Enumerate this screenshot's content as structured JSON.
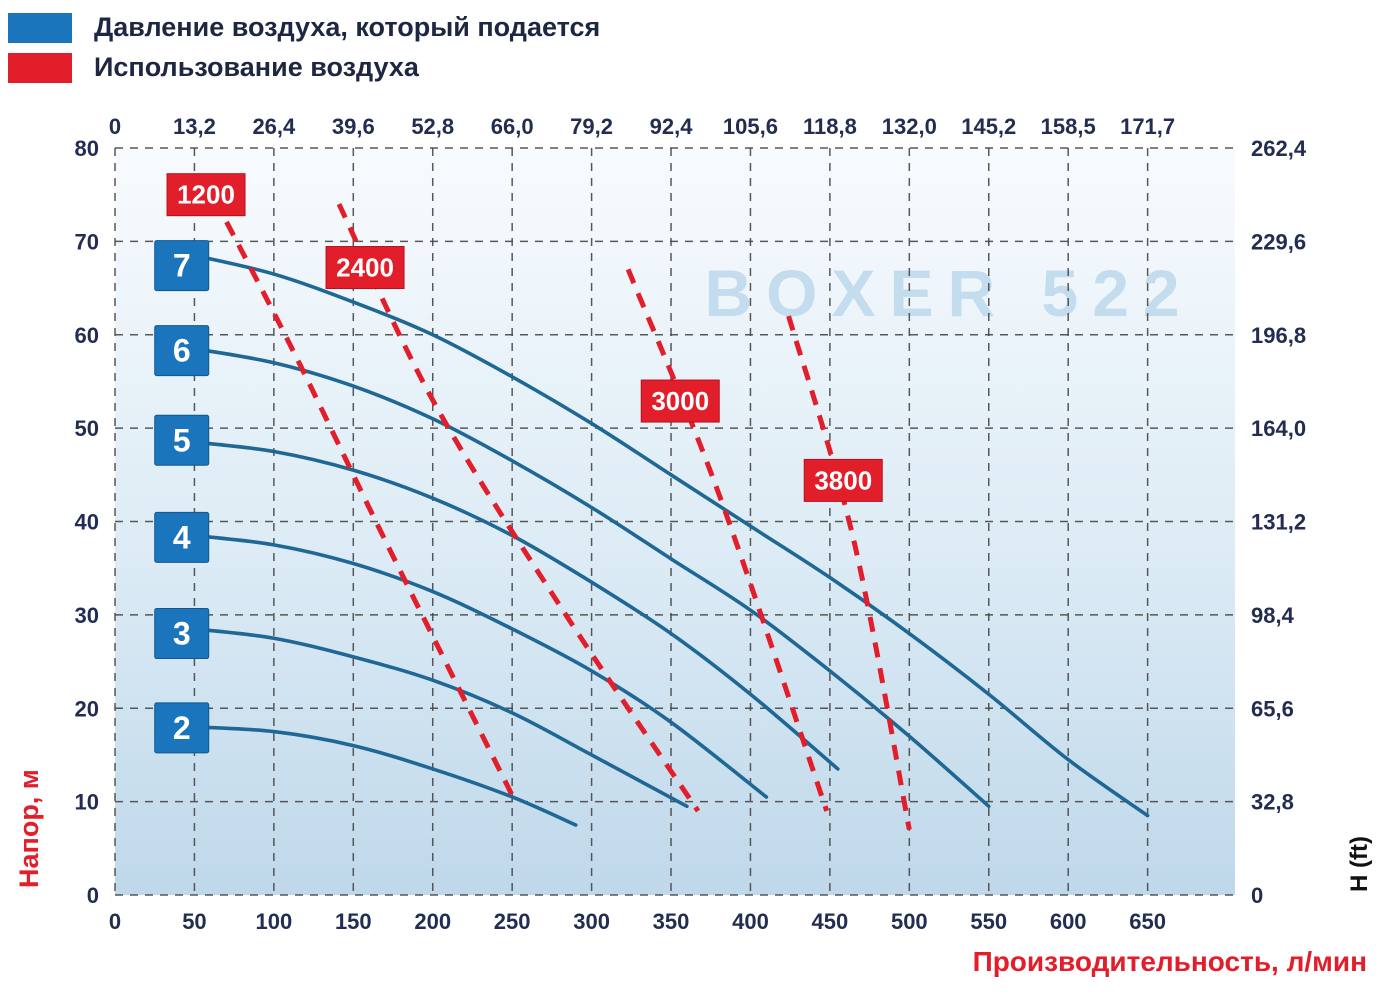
{
  "legend": {
    "items": [
      {
        "name": "pressure",
        "label": "Давление воздуха, который подается",
        "color": "#1a75bc"
      },
      {
        "name": "air-usage",
        "label": "Использование воздуха",
        "color": "#e21e2b"
      }
    ]
  },
  "watermark": "BOXER 522",
  "axes": {
    "top": {
      "ticks": [
        "0",
        "13,2",
        "26,4",
        "39,6",
        "52,8",
        "66,0",
        "79,2",
        "92,4",
        "105,6",
        "118,8",
        "132,0",
        "145,2",
        "158,5",
        "171,7"
      ]
    },
    "bottom": {
      "title": "Производительность, л/мин",
      "ticks": [
        0,
        50,
        100,
        150,
        200,
        250,
        300,
        350,
        400,
        450,
        500,
        550,
        600,
        650
      ]
    },
    "left": {
      "title": "Напор, м",
      "ticks": [
        0,
        10,
        20,
        30,
        40,
        50,
        60,
        70,
        80
      ]
    },
    "right": {
      "title": "H (ft)",
      "ticks": [
        "0",
        "32,8",
        "65,6",
        "98,4",
        "131,2",
        "164,0",
        "196,8",
        "229,6",
        "262,4"
      ]
    }
  },
  "chart_data": {
    "type": "line",
    "title": "BOXER 522",
    "xlabel": "Производительность, л/мин",
    "ylabel": "Напор, м",
    "xlim": [
      0,
      705
    ],
    "ylim": [
      0,
      80
    ],
    "grid": true,
    "colors": {
      "pressure_curve": "#1f6795",
      "air_line": "#e21e2b",
      "pressure_label_bg": "#1a75bc",
      "air_label_bg": "#e21e2b",
      "tick_text": "#232d52",
      "watermark": "#b9d6ec"
    },
    "series": [
      {
        "name": "7",
        "group": "pressure-bar",
        "style": "solid",
        "points": [
          [
            50,
            68.5
          ],
          [
            100,
            66.5
          ],
          [
            150,
            63.5
          ],
          [
            200,
            60
          ],
          [
            250,
            55.5
          ],
          [
            300,
            50.5
          ],
          [
            350,
            45
          ],
          [
            400,
            39.5
          ],
          [
            450,
            34
          ],
          [
            500,
            28
          ],
          [
            550,
            21.5
          ],
          [
            600,
            14.5
          ],
          [
            650,
            8.5
          ]
        ]
      },
      {
        "name": "6",
        "group": "pressure-bar",
        "style": "solid",
        "points": [
          [
            50,
            58.5
          ],
          [
            100,
            57
          ],
          [
            150,
            54.5
          ],
          [
            200,
            51
          ],
          [
            250,
            46.5
          ],
          [
            300,
            41.5
          ],
          [
            350,
            36
          ],
          [
            400,
            30.5
          ],
          [
            450,
            24
          ],
          [
            500,
            17
          ],
          [
            550,
            9.5
          ]
        ]
      },
      {
        "name": "5",
        "group": "pressure-bar",
        "style": "solid",
        "points": [
          [
            50,
            48.5
          ],
          [
            100,
            47.5
          ],
          [
            150,
            45.5
          ],
          [
            200,
            42.5
          ],
          [
            250,
            38.5
          ],
          [
            300,
            33.5
          ],
          [
            350,
            28
          ],
          [
            400,
            21.5
          ],
          [
            455,
            13.5
          ]
        ]
      },
      {
        "name": "4",
        "group": "pressure-bar",
        "style": "solid",
        "points": [
          [
            50,
            38.5
          ],
          [
            100,
            37.5
          ],
          [
            150,
            35.5
          ],
          [
            200,
            32.5
          ],
          [
            250,
            28.5
          ],
          [
            300,
            24
          ],
          [
            350,
            18.5
          ],
          [
            410,
            10.5
          ]
        ]
      },
      {
        "name": "3",
        "group": "pressure-bar",
        "style": "solid",
        "points": [
          [
            50,
            28.5
          ],
          [
            100,
            27.5
          ],
          [
            150,
            25.5
          ],
          [
            200,
            23
          ],
          [
            250,
            19.5
          ],
          [
            300,
            15
          ],
          [
            360,
            9.5
          ]
        ]
      },
      {
        "name": "2",
        "group": "pressure-bar",
        "style": "solid",
        "points": [
          [
            50,
            18
          ],
          [
            100,
            17.5
          ],
          [
            150,
            16
          ],
          [
            200,
            13.5
          ],
          [
            250,
            10.5
          ],
          [
            290,
            7.5
          ]
        ]
      },
      {
        "name": "1200",
        "group": "air-consumption",
        "style": "dashed",
        "points": [
          [
            55,
            77
          ],
          [
            110,
            59
          ],
          [
            170,
            38
          ],
          [
            252,
            10
          ]
        ]
      },
      {
        "name": "2400",
        "group": "air-consumption",
        "style": "dashed",
        "points": [
          [
            141,
            74
          ],
          [
            200,
            53
          ],
          [
            280,
            31
          ],
          [
            367,
            9
          ]
        ]
      },
      {
        "name": "3000",
        "group": "air-consumption",
        "style": "dashed",
        "points": [
          [
            323,
            67
          ],
          [
            380,
            43
          ],
          [
            448,
            9
          ]
        ]
      },
      {
        "name": "3800",
        "group": "air-consumption",
        "style": "dashed",
        "points": [
          [
            424,
            62
          ],
          [
            465,
            38
          ],
          [
            500,
            7
          ]
        ]
      }
    ],
    "labels": [
      {
        "text": "1200",
        "kind": "air",
        "x": 57.3,
        "y": 75
      },
      {
        "text": "2400",
        "kind": "air",
        "x": 157.4,
        "y": 67.2
      },
      {
        "text": "3000",
        "kind": "air",
        "x": 355.8,
        "y": 52.9
      },
      {
        "text": "3800",
        "kind": "air",
        "x": 458.4,
        "y": 44.4
      },
      {
        "text": "7",
        "kind": "pressure",
        "x": 42,
        "y": 67.4
      },
      {
        "text": "6",
        "kind": "pressure",
        "x": 42,
        "y": 58.3
      },
      {
        "text": "5",
        "kind": "pressure",
        "x": 42,
        "y": 48.7
      },
      {
        "text": "4",
        "kind": "pressure",
        "x": 42,
        "y": 38.3
      },
      {
        "text": "3",
        "kind": "pressure",
        "x": 42,
        "y": 28.0
      },
      {
        "text": "2",
        "kind": "pressure",
        "x": 42,
        "y": 17.9
      }
    ]
  }
}
